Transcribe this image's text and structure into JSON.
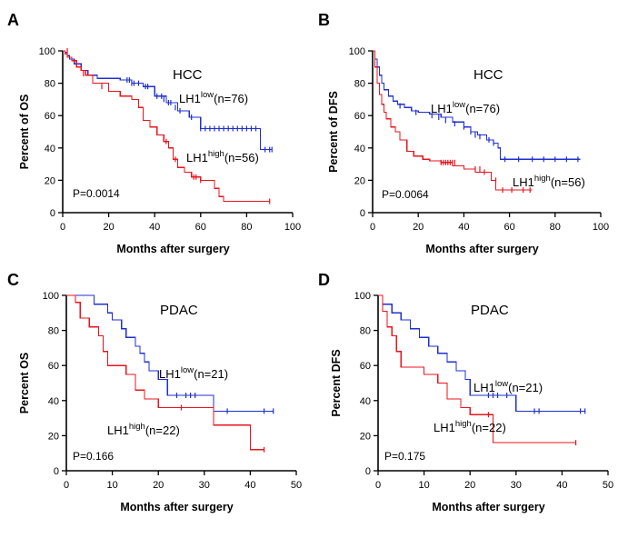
{
  "figure_alt": "Kaplan-Meier survival curves by LH1 expression in HCC and PDAC",
  "colors": {
    "low": "#1f2fd0",
    "high": "#e8141e",
    "axis": "#000000"
  },
  "chart_data": [
    {
      "panel": "A",
      "type": "line",
      "title": "HCC",
      "xlabel": "Months after surgery",
      "ylabel": "Percent of OS",
      "xlim": [
        0,
        100
      ],
      "ylim": [
        0,
        100
      ],
      "xticks": [
        0,
        20,
        40,
        60,
        80,
        100
      ],
      "yticks": [
        0,
        20,
        40,
        60,
        80,
        100
      ],
      "pvalue": "P=0.0014",
      "series": [
        {
          "name": "LH1 low",
          "label_main": "LH1",
          "label_sup": "low",
          "label_tail": "(n=76)",
          "group": "low",
          "x": [
            0,
            1,
            2,
            3,
            5,
            8,
            11,
            15,
            20,
            25,
            30,
            35,
            40,
            45,
            50,
            55,
            60,
            70,
            86,
            87,
            91
          ],
          "y": [
            100,
            99,
            97,
            95,
            92,
            88,
            85,
            83,
            83,
            82,
            80,
            78,
            72,
            68,
            63,
            59,
            52,
            52,
            39,
            39,
            39
          ],
          "censor": [
            [
              28,
              82
            ],
            [
              29,
              82
            ],
            [
              30,
              80
            ],
            [
              31,
              80
            ],
            [
              33,
              80
            ],
            [
              36,
              78
            ],
            [
              37,
              78
            ],
            [
              41,
              72
            ],
            [
              43,
              72
            ],
            [
              44,
              70
            ],
            [
              46,
              68
            ],
            [
              47,
              68
            ],
            [
              49,
              65
            ],
            [
              51,
              63
            ],
            [
              56,
              59
            ],
            [
              60,
              52
            ],
            [
              62,
              52
            ],
            [
              64,
              52
            ],
            [
              66,
              52
            ],
            [
              68,
              52
            ],
            [
              70,
              52
            ],
            [
              72,
              52
            ],
            [
              74,
              52
            ],
            [
              76,
              52
            ],
            [
              78,
              52
            ],
            [
              80,
              52
            ],
            [
              82,
              52
            ],
            [
              84,
              52
            ],
            [
              88,
              39
            ],
            [
              90,
              39
            ],
            [
              91,
              39
            ]
          ]
        },
        {
          "name": "LH1 high",
          "label_main": "LH1",
          "label_sup": "high",
          "label_tail": "(n=56)",
          "group": "high",
          "x": [
            0,
            1,
            2,
            4,
            6,
            8,
            10,
            13,
            20,
            25,
            30,
            33,
            35,
            38,
            41,
            44,
            46,
            48,
            50,
            53,
            56,
            60,
            66,
            68,
            70,
            90
          ],
          "y": [
            100,
            98,
            96,
            94,
            90,
            88,
            85,
            80,
            75,
            72,
            70,
            65,
            57,
            53,
            48,
            44,
            40,
            33,
            28,
            25,
            22,
            20,
            15,
            10,
            7,
            7
          ],
          "censor": [
            [
              2,
              100
            ],
            [
              9,
              86
            ],
            [
              17,
              78
            ],
            [
              45,
              44
            ],
            [
              49,
              33
            ],
            [
              57,
              22
            ],
            [
              58,
              22
            ],
            [
              60,
              20
            ],
            [
              90,
              7
            ]
          ]
        }
      ]
    },
    {
      "panel": "B",
      "type": "line",
      "title": "HCC",
      "xlabel": "Months after surgery",
      "ylabel": "Percent of DFS",
      "xlim": [
        0,
        100
      ],
      "ylim": [
        0,
        100
      ],
      "xticks": [
        0,
        20,
        40,
        60,
        80,
        100
      ],
      "yticks": [
        0,
        20,
        40,
        60,
        80,
        100
      ],
      "pvalue": "P=0.0064",
      "series": [
        {
          "name": "LH1 low",
          "label_main": "LH1",
          "label_sup": "low",
          "label_tail": "(n=76)",
          "group": "low",
          "x": [
            0,
            1,
            2,
            3,
            4,
            5,
            7,
            9,
            11,
            14,
            17,
            20,
            25,
            30,
            35,
            40,
            43,
            46,
            50,
            53,
            55,
            56,
            91
          ],
          "y": [
            100,
            95,
            90,
            85,
            80,
            76,
            72,
            69,
            67,
            65,
            63,
            62,
            61,
            59,
            56,
            53,
            50,
            48,
            45,
            43,
            40,
            33,
            33
          ],
          "censor": [
            [
              12,
              66
            ],
            [
              19,
              62
            ],
            [
              26,
              60
            ],
            [
              29,
              59
            ],
            [
              32,
              57
            ],
            [
              36,
              55
            ],
            [
              40,
              53
            ],
            [
              43,
              50
            ],
            [
              45,
              48
            ],
            [
              47,
              47
            ],
            [
              51,
              45
            ],
            [
              53,
              43
            ],
            [
              58,
              33
            ],
            [
              64,
              33
            ],
            [
              70,
              33
            ],
            [
              75,
              33
            ],
            [
              80,
              33
            ],
            [
              85,
              33
            ],
            [
              90,
              33
            ]
          ]
        },
        {
          "name": "LH1 high",
          "label_main": "LH1",
          "label_sup": "high",
          "label_tail": "(n=56)",
          "group": "high",
          "x": [
            0,
            1,
            2,
            3,
            4,
            5,
            6,
            8,
            10,
            12,
            15,
            18,
            22,
            25,
            30,
            35,
            40,
            45,
            52,
            54,
            70
          ],
          "y": [
            100,
            90,
            80,
            73,
            67,
            62,
            58,
            53,
            50,
            45,
            38,
            35,
            33,
            32,
            31,
            29,
            27,
            25,
            20,
            14,
            14
          ],
          "censor": [
            [
              30,
              31
            ],
            [
              31,
              31
            ],
            [
              32,
              31
            ],
            [
              33,
              31
            ],
            [
              34,
              31
            ],
            [
              35,
              31
            ],
            [
              36,
              31
            ],
            [
              45,
              27
            ],
            [
              47,
              27
            ],
            [
              49,
              25
            ],
            [
              54,
              20
            ],
            [
              57,
              14
            ],
            [
              61,
              14
            ],
            [
              66,
              14
            ],
            [
              69,
              14
            ]
          ]
        }
      ]
    },
    {
      "panel": "C",
      "type": "line",
      "title": "PDAC",
      "xlabel": "Months after surgery",
      "ylabel": "Percent OS",
      "xlim": [
        0,
        50
      ],
      "ylim": [
        0,
        100
      ],
      "xticks": [
        0,
        10,
        20,
        30,
        40,
        50
      ],
      "yticks": [
        0,
        20,
        40,
        60,
        80,
        100
      ],
      "pvalue": "P=0.166",
      "series": [
        {
          "name": "LH1 low",
          "label_main": "LH1",
          "label_sup": "low",
          "label_tail": "(n=21)",
          "group": "low",
          "x": [
            0,
            6,
            9,
            10,
            12,
            13,
            15,
            16,
            17,
            18,
            20,
            22,
            30,
            32,
            45
          ],
          "y": [
            100,
            95,
            90,
            86,
            81,
            76,
            71,
            67,
            62,
            57,
            52,
            43,
            43,
            34,
            34
          ],
          "censor": [
            [
              24,
              43
            ],
            [
              26,
              43
            ],
            [
              27,
              43
            ],
            [
              28,
              43
            ],
            [
              35,
              34
            ],
            [
              43,
              34
            ],
            [
              45,
              34
            ]
          ]
        },
        {
          "name": "LH1 high",
          "label_main": "LH1",
          "label_sup": "high",
          "label_tail": "(n=22)",
          "group": "high",
          "x": [
            0,
            2,
            3,
            5,
            7,
            8,
            9,
            13,
            15,
            17,
            20,
            32,
            40,
            43
          ],
          "y": [
            100,
            96,
            87,
            82,
            77,
            68,
            60,
            55,
            46,
            41,
            36,
            26,
            12,
            12
          ],
          "censor": [
            [
              25,
              36
            ],
            [
              43,
              12
            ]
          ]
        }
      ]
    },
    {
      "panel": "D",
      "type": "line",
      "title": "PDAC",
      "xlabel": "Months after surgery",
      "ylabel": "Percent DFS",
      "xlim": [
        0,
        50
      ],
      "ylim": [
        0,
        100
      ],
      "xticks": [
        0,
        10,
        20,
        30,
        40,
        50
      ],
      "yticks": [
        0,
        20,
        40,
        60,
        80,
        100
      ],
      "pvalue": "P=0.175",
      "series": [
        {
          "name": "LH1 low",
          "label_main": "LH1",
          "label_sup": "low",
          "label_tail": "(n=21)",
          "group": "low",
          "x": [
            0,
            1,
            3,
            5,
            7,
            9,
            11,
            13,
            15,
            17,
            19,
            20,
            30,
            45
          ],
          "y": [
            100,
            95,
            90,
            86,
            81,
            76,
            71,
            67,
            62,
            57,
            52,
            43,
            34,
            34
          ],
          "censor": [
            [
              24,
              43
            ],
            [
              25,
              43
            ],
            [
              26,
              43
            ],
            [
              28,
              43
            ],
            [
              34,
              34
            ],
            [
              35,
              34
            ],
            [
              44,
              34
            ],
            [
              45,
              34
            ]
          ]
        },
        {
          "name": "LH1 high",
          "label_main": "LH1",
          "label_sup": "high",
          "label_tail": "(n=22)",
          "group": "high",
          "x": [
            0,
            1,
            2,
            3,
            4,
            5,
            10,
            13,
            15,
            18,
            20,
            25,
            43
          ],
          "y": [
            100,
            91,
            82,
            77,
            68,
            59,
            55,
            50,
            41,
            36,
            32,
            16,
            16
          ],
          "censor": [
            [
              24,
              32
            ],
            [
              43,
              16
            ]
          ]
        }
      ]
    }
  ]
}
